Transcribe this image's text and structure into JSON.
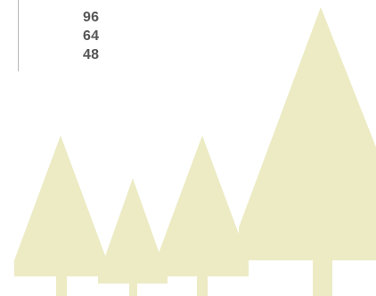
{
  "size_list": {
    "items": [
      {
        "label": "96"
      },
      {
        "label": "64"
      },
      {
        "label": "48"
      }
    ]
  },
  "illustration": {
    "subject": "tree-icons",
    "fill_color": "#ecebc4"
  },
  "colors": {
    "text": "#555555",
    "divider": "#b9b9b9",
    "background": "#ffffff"
  }
}
